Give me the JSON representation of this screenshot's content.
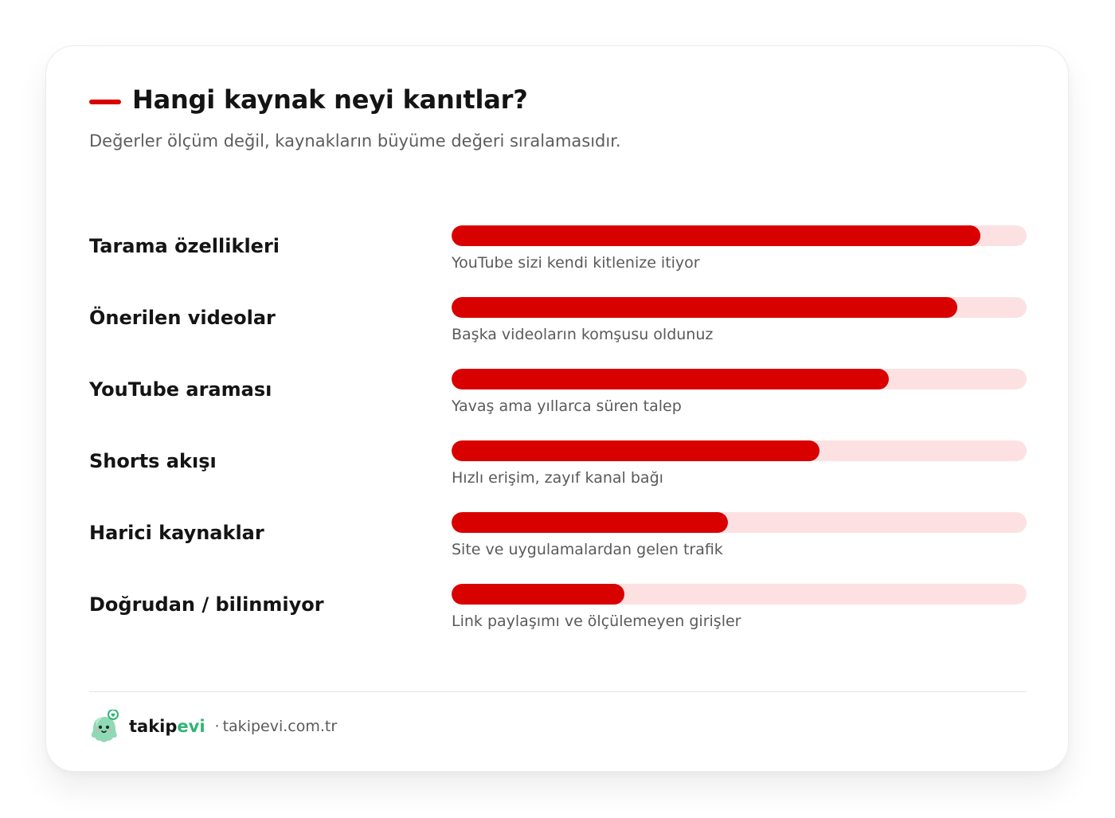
{
  "header": {
    "title": "Hangi kaynak neyi kanıtlar?",
    "subtitle": "Değerler ölçüm değil, kaynakların büyüme değeri sıralamasıdır."
  },
  "chart_data": {
    "type": "bar",
    "orientation": "horizontal",
    "title": "Hangi kaynak neyi kanıtlar?",
    "subtitle": "Değerler ölçüm değil, kaynakların büyüme değeri sıralamasıdır.",
    "xlim": [
      0,
      100
    ],
    "grid": false,
    "legend": "none",
    "categories": [
      "Tarama özellikleri",
      "Önerilen videolar",
      "YouTube araması",
      "Shorts akışı",
      "Harici kaynaklar",
      "Doğrudan / bilinmiyor"
    ],
    "values": [
      92,
      88,
      76,
      64,
      48,
      30
    ],
    "annotations": [
      "YouTube sizi kendi kitlenize itiyor",
      "Başka videoların komşusu oldunuz",
      "Yavaş ama yıllarca süren talep",
      "Hızlı erişim, zayıf kanal bağı",
      "Site ve uygulamalardan gelen trafik",
      "Link paylaşımı ve ölçülemeyen girişler"
    ],
    "colors": {
      "bar": "#d90000",
      "track": "#fde1e2"
    }
  },
  "footer": {
    "brand_primary": "takip",
    "brand_accent": "evi",
    "separator": "·",
    "site": "takipevi.com.tr",
    "mascot_icon": "mascot-logo-icon"
  },
  "colors": {
    "accent": "#d90000",
    "brand_green": "#2fb574",
    "text": "#141414",
    "muted": "#5a5a5a"
  }
}
